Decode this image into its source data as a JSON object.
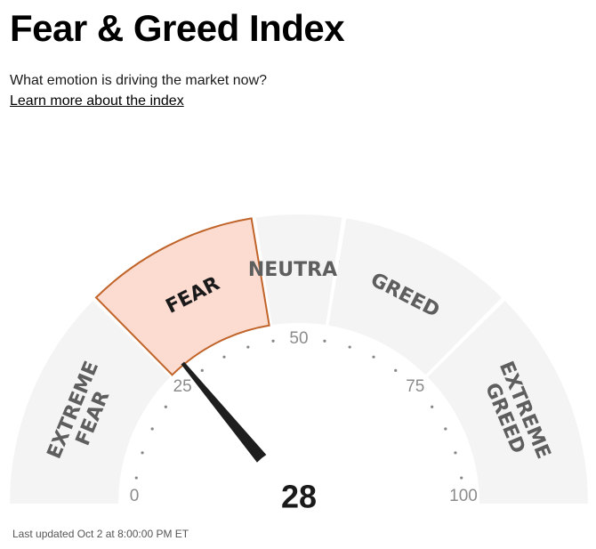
{
  "header": {
    "title": "Fear & Greed Index",
    "subtitle": "What emotion is driving the market now?",
    "learn_more": "Learn more about the index"
  },
  "gauge": {
    "value": 28,
    "value_label": "28",
    "active_zone": "fear",
    "zones": [
      {
        "id": "extreme-fear",
        "lines": [
          "EXTREME",
          "FEAR"
        ],
        "from": 0,
        "to": 25
      },
      {
        "id": "fear",
        "lines": [
          "FEAR"
        ],
        "from": 25,
        "to": 45
      },
      {
        "id": "neutral",
        "lines": [
          "NEUTRAL"
        ],
        "from": 45,
        "to": 55
      },
      {
        "id": "greed",
        "lines": [
          "GREED"
        ],
        "from": 55,
        "to": 75
      },
      {
        "id": "extreme-greed",
        "lines": [
          "EXTREME",
          "GREED"
        ],
        "from": 75,
        "to": 100
      }
    ],
    "ticks": [
      "0",
      "25",
      "50",
      "75",
      "100"
    ],
    "colors": {
      "zone_fill": "#f4f4f4",
      "active_fill": "#fcdcd1",
      "active_stroke": "#c0642a",
      "needle": "#1e1e1e",
      "dots": "#888888"
    }
  },
  "footer": {
    "last_updated": "Last updated Oct 2 at 8:00:00 PM ET"
  }
}
